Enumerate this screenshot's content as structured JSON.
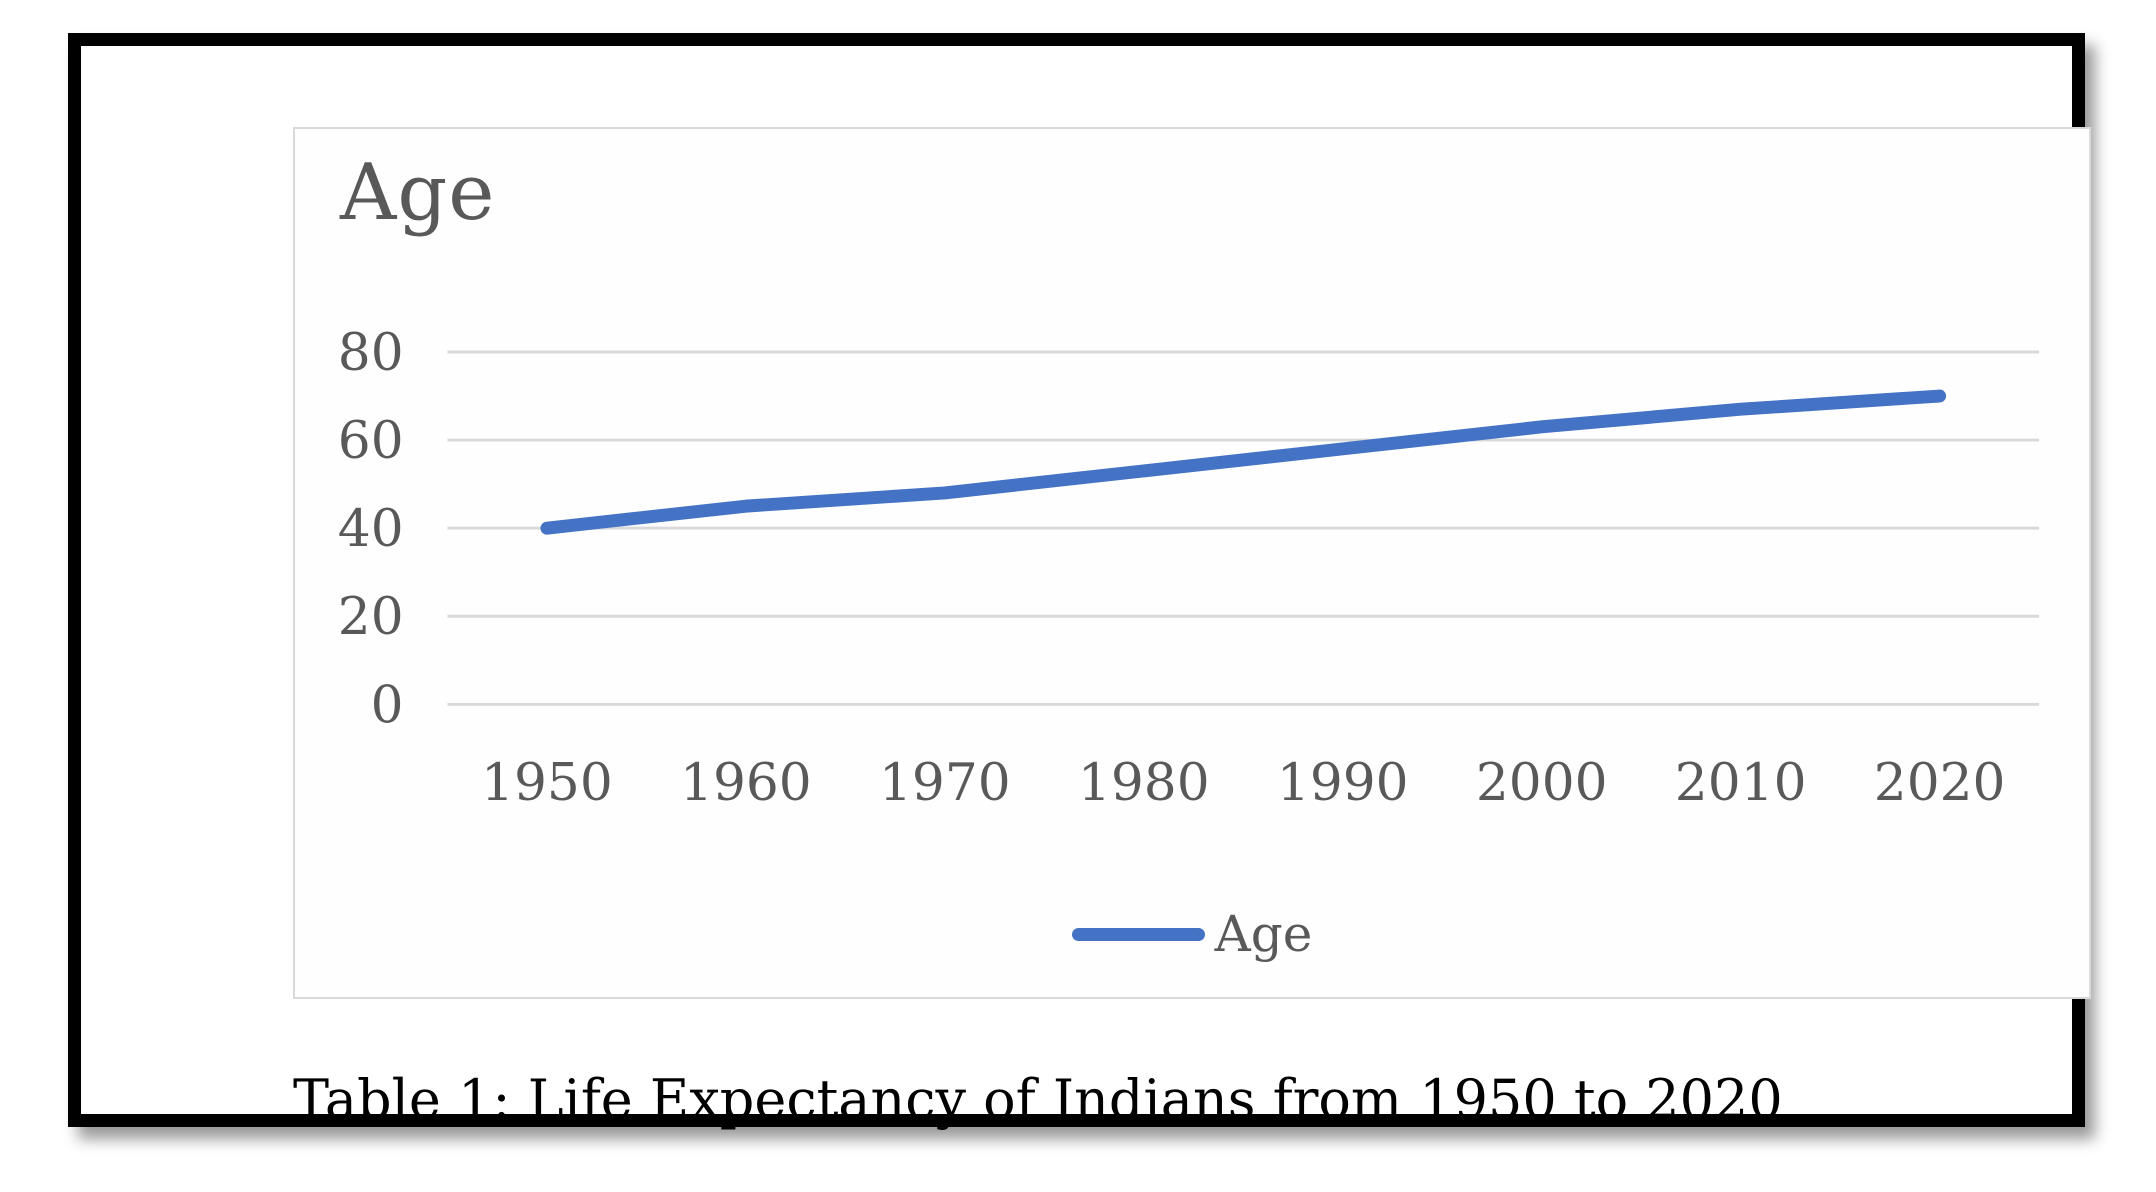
{
  "figure": {
    "caption": "Table 1: Life Expectancy of Indians from 1950 to 2020"
  },
  "chart_data": {
    "type": "line",
    "title": "Age",
    "categories": [
      "1950",
      "1960",
      "1970",
      "1980",
      "1990",
      "2000",
      "2010",
      "2020"
    ],
    "series": [
      {
        "name": "Age",
        "values": [
          40,
          45,
          48,
          53,
          58,
          63,
          67,
          70
        ]
      }
    ],
    "xlabel": "",
    "ylabel": "",
    "ylim": [
      0,
      80
    ],
    "yticks": [
      0,
      20,
      40,
      60,
      80
    ],
    "grid": true,
    "legend_position": "bottom",
    "colors": {
      "line": "#4472c4",
      "gridline": "#d9d9d9",
      "labels": "#595959",
      "panel_border": "#d9d9d9",
      "caption_text": "#000000",
      "frame": "#000000"
    }
  }
}
